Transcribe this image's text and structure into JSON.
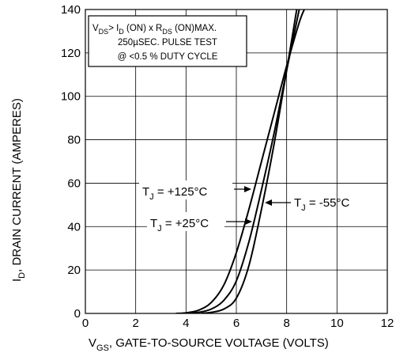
{
  "chart_data": {
    "type": "line",
    "xlabel": {
      "prefix": "V",
      "sub": "GS",
      "rest": ", GATE-TO-SOURCE VOLTAGE (VOLTS)"
    },
    "ylabel": {
      "prefix": "I",
      "sub": "D",
      "rest": ", DRAIN CURRENT (AMPERES)"
    },
    "xlim": [
      0,
      12
    ],
    "ylim": [
      0,
      140
    ],
    "x_ticks": [
      0,
      2,
      4,
      6,
      8,
      10,
      12
    ],
    "y_ticks": [
      0,
      20,
      40,
      60,
      80,
      100,
      120,
      140
    ],
    "grid": true,
    "conditions": {
      "line1": {
        "a": "V",
        "a_sub": "DS",
        "b": "> I",
        "b_sub": "D",
        "c": " (ON) x R",
        "c_sub": "DS",
        "d": " (ON)MAX."
      },
      "line2": "250µSEC. PULSE TEST",
      "line3": "@ <0.5 % DUTY CYCLE"
    },
    "series": [
      {
        "label": {
          "prefix": "T",
          "sub": "J",
          "rest": " = +125°C"
        },
        "points": [
          [
            3.6,
            0
          ],
          [
            4.0,
            0.3
          ],
          [
            4.5,
            1.5
          ],
          [
            5.0,
            5
          ],
          [
            5.5,
            13
          ],
          [
            6.0,
            28
          ],
          [
            6.5,
            48
          ],
          [
            7.0,
            70
          ],
          [
            7.5,
            92
          ],
          [
            8.0,
            114
          ],
          [
            8.5,
            134
          ],
          [
            8.7,
            140
          ]
        ]
      },
      {
        "label": {
          "prefix": "T",
          "sub": "J",
          "rest": " = +25°C"
        },
        "points": [
          [
            4.0,
            0
          ],
          [
            4.5,
            0.5
          ],
          [
            5.0,
            2
          ],
          [
            5.5,
            6
          ],
          [
            6.0,
            15
          ],
          [
            6.5,
            33
          ],
          [
            7.0,
            57
          ],
          [
            7.5,
            83
          ],
          [
            8.0,
            112
          ],
          [
            8.5,
            140
          ]
        ]
      },
      {
        "label": {
          "prefix": "T",
          "sub": "J",
          "rest": " = -55°C"
        },
        "points": [
          [
            4.6,
            0
          ],
          [
            5.0,
            0.5
          ],
          [
            5.5,
            2
          ],
          [
            6.0,
            7
          ],
          [
            6.5,
            22
          ],
          [
            7.0,
            48
          ],
          [
            7.5,
            78
          ],
          [
            8.0,
            112
          ],
          [
            8.4,
            140
          ]
        ]
      }
    ]
  }
}
